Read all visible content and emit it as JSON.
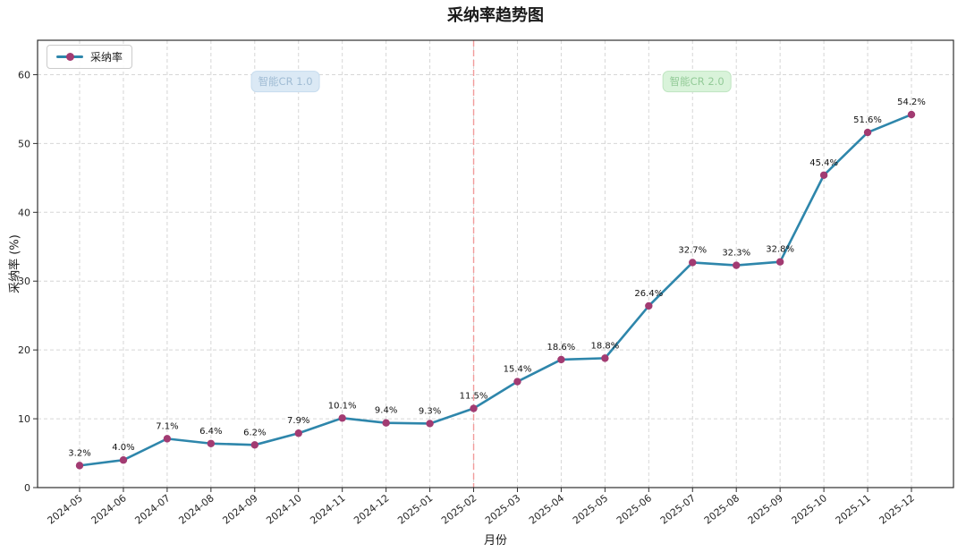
{
  "chart_data": {
    "type": "line",
    "title": "采纳率趋势图",
    "xlabel": "月份",
    "ylabel": "采纳率 (%)",
    "categories": [
      "2024-05",
      "2024-06",
      "2024-07",
      "2024-08",
      "2024-09",
      "2024-10",
      "2024-11",
      "2024-12",
      "2025-01",
      "2025-02",
      "2025-03",
      "2025-04",
      "2025-05",
      "2025-06",
      "2025-07",
      "2025-08",
      "2025-09",
      "2025-10",
      "2025-11",
      "2025-12"
    ],
    "series": [
      {
        "name": "采纳率",
        "values": [
          3.2,
          4.0,
          7.1,
          6.4,
          6.2,
          7.9,
          10.1,
          9.4,
          9.3,
          11.5,
          15.4,
          18.6,
          18.8,
          26.4,
          32.7,
          32.3,
          32.8,
          45.4,
          51.6,
          54.2
        ],
        "point_labels": [
          "3.2%",
          "4.0%",
          "7.1%",
          "6.4%",
          "6.2%",
          "7.9%",
          "10.1%",
          "9.4%",
          "9.3%",
          "11.5%",
          "15.4%",
          "18.6%",
          "18.8%",
          "26.4%",
          "32.7%",
          "32.3%",
          "32.8%",
          "45.4%",
          "51.6%",
          "54.2%"
        ],
        "line_color": "#2E86AB",
        "marker_color": "#A23B72"
      }
    ],
    "yticks": [
      0,
      10,
      20,
      30,
      40,
      50,
      60
    ],
    "ylim": [
      0,
      65
    ],
    "grid": true,
    "legend_position": "upper-left",
    "annotations": [
      {
        "text": "智能CR 1.0",
        "x": 4.7,
        "y": 59,
        "bg": "#dbe9f5",
        "border": "#c6dcee",
        "text_color": "#a0bcd4"
      },
      {
        "text": "智能CR 2.0",
        "x": 14.1,
        "y": 59,
        "bg": "#d9f3da",
        "border": "#bfe5c1",
        "text_color": "#93cb98"
      }
    ],
    "vline": {
      "month": "2025-02",
      "color": "#f29b9b",
      "style": "dashed"
    },
    "colors": {
      "grid": "#d6d6d6",
      "axis": "#2f2f2f",
      "tick_label": "#262626",
      "point_label": "#111111"
    }
  }
}
